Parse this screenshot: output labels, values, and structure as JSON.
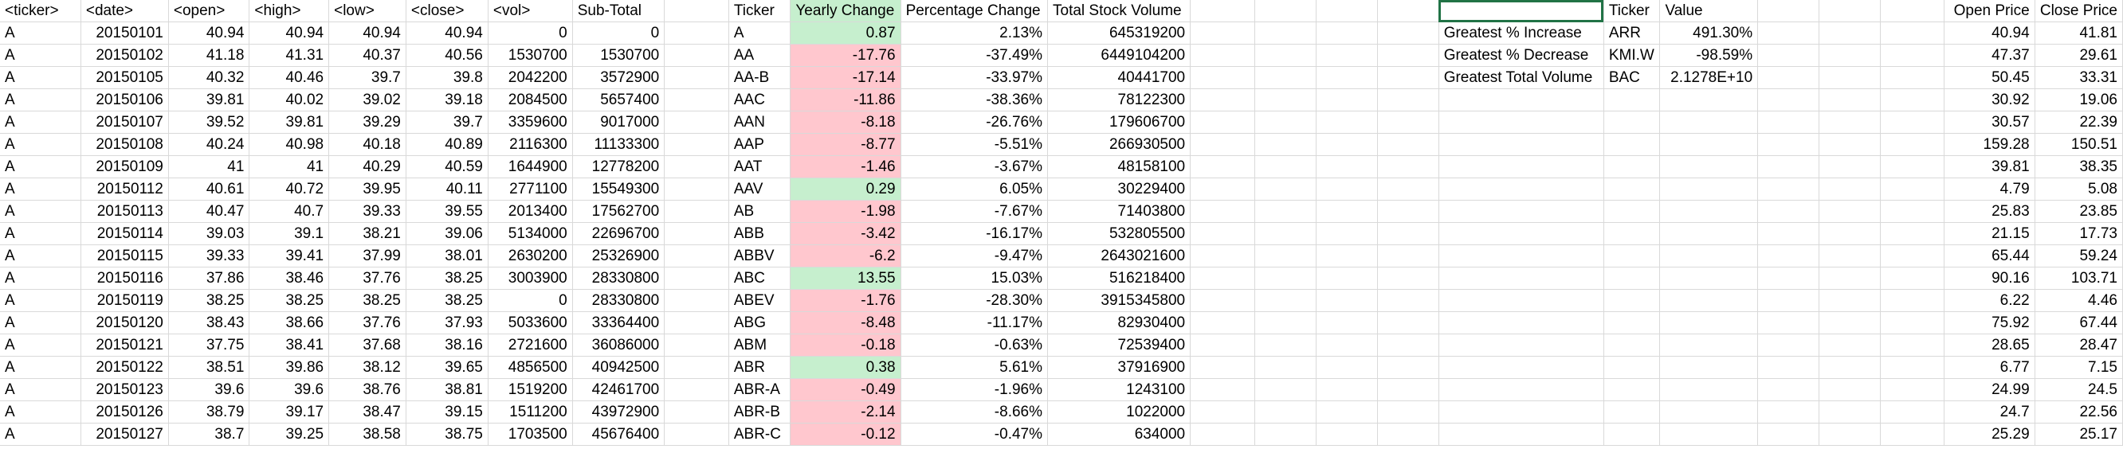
{
  "headers": [
    "<ticker>",
    "<date>",
    "<open>",
    "<high>",
    "<low>",
    "<close>",
    "<vol>",
    "Sub-Total",
    "",
    "Ticker",
    "Yearly Change",
    "Percentage Change",
    "Total Stock Volume",
    "",
    "",
    "",
    "",
    "",
    "Ticker",
    "Value",
    "",
    "",
    "",
    "Open Price",
    "Close Price"
  ],
  "raw_rows": [
    [
      "A",
      "20150101",
      "40.94",
      "40.94",
      "40.94",
      "40.94",
      "0",
      "0"
    ],
    [
      "A",
      "20150102",
      "41.18",
      "41.31",
      "40.37",
      "40.56",
      "1530700",
      "1530700"
    ],
    [
      "A",
      "20150105",
      "40.32",
      "40.46",
      "39.7",
      "39.8",
      "2042200",
      "3572900"
    ],
    [
      "A",
      "20150106",
      "39.81",
      "40.02",
      "39.02",
      "39.18",
      "2084500",
      "5657400"
    ],
    [
      "A",
      "20150107",
      "39.52",
      "39.81",
      "39.29",
      "39.7",
      "3359600",
      "9017000"
    ],
    [
      "A",
      "20150108",
      "40.24",
      "40.98",
      "40.18",
      "40.89",
      "2116300",
      "11133300"
    ],
    [
      "A",
      "20150109",
      "41",
      "41",
      "40.29",
      "40.59",
      "1644900",
      "12778200"
    ],
    [
      "A",
      "20150112",
      "40.61",
      "40.72",
      "39.95",
      "40.11",
      "2771100",
      "15549300"
    ],
    [
      "A",
      "20150113",
      "40.47",
      "40.7",
      "39.33",
      "39.55",
      "2013400",
      "17562700"
    ],
    [
      "A",
      "20150114",
      "39.03",
      "39.1",
      "38.21",
      "39.06",
      "5134000",
      "22696700"
    ],
    [
      "A",
      "20150115",
      "39.33",
      "39.41",
      "37.99",
      "38.01",
      "2630200",
      "25326900"
    ],
    [
      "A",
      "20150116",
      "37.86",
      "38.46",
      "37.76",
      "38.25",
      "3003900",
      "28330800"
    ],
    [
      "A",
      "20150119",
      "38.25",
      "38.25",
      "38.25",
      "38.25",
      "0",
      "28330800"
    ],
    [
      "A",
      "20150120",
      "38.43",
      "38.66",
      "37.76",
      "37.93",
      "5033600",
      "33364400"
    ],
    [
      "A",
      "20150121",
      "37.75",
      "38.41",
      "37.68",
      "38.16",
      "2721600",
      "36086000"
    ],
    [
      "A",
      "20150122",
      "38.51",
      "39.86",
      "38.12",
      "39.65",
      "4856500",
      "40942500"
    ],
    [
      "A",
      "20150123",
      "39.6",
      "39.6",
      "38.76",
      "38.81",
      "1519200",
      "42461700"
    ],
    [
      "A",
      "20150126",
      "38.79",
      "39.17",
      "38.47",
      "39.15",
      "1511200",
      "43972900"
    ],
    [
      "A",
      "20150127",
      "38.7",
      "39.25",
      "38.58",
      "38.75",
      "1703500",
      "45676400"
    ]
  ],
  "summary_rows": [
    [
      "A",
      "0.87",
      "2.13%",
      "645319200"
    ],
    [
      "AA",
      "-17.76",
      "-37.49%",
      "6449104200"
    ],
    [
      "AA-B",
      "-17.14",
      "-33.97%",
      "40441700"
    ],
    [
      "AAC",
      "-11.86",
      "-38.36%",
      "78122300"
    ],
    [
      "AAN",
      "-8.18",
      "-26.76%",
      "179606700"
    ],
    [
      "AAP",
      "-8.77",
      "-5.51%",
      "266930500"
    ],
    [
      "AAT",
      "-1.46",
      "-3.67%",
      "48158100"
    ],
    [
      "AAV",
      "0.29",
      "6.05%",
      "30229400"
    ],
    [
      "AB",
      "-1.98",
      "-7.67%",
      "71403800"
    ],
    [
      "ABB",
      "-3.42",
      "-16.17%",
      "532805500"
    ],
    [
      "ABBV",
      "-6.2",
      "-9.47%",
      "2643021600"
    ],
    [
      "ABC",
      "13.55",
      "15.03%",
      "516218400"
    ],
    [
      "ABEV",
      "-1.76",
      "-28.30%",
      "3915345800"
    ],
    [
      "ABG",
      "-8.48",
      "-11.17%",
      "82930400"
    ],
    [
      "ABM",
      "-0.18",
      "-0.63%",
      "72539400"
    ],
    [
      "ABR",
      "0.38",
      "5.61%",
      "37916900"
    ],
    [
      "ABR-A",
      "-0.49",
      "-1.96%",
      "1243100"
    ],
    [
      "ABR-B",
      "-2.14",
      "-8.66%",
      "1022000"
    ],
    [
      "ABR-C",
      "-0.12",
      "-0.47%",
      "634000"
    ]
  ],
  "greatest": [
    [
      "Greatest % Increase",
      "ARR",
      "491.30%"
    ],
    [
      "Greatest % Decrease",
      "KMI.W",
      "-98.59%"
    ],
    [
      "Greatest Total Volume",
      "BAC",
      "2.1278E+10"
    ]
  ],
  "price_rows": [
    [
      "40.94",
      "41.81"
    ],
    [
      "47.37",
      "29.61"
    ],
    [
      "50.45",
      "33.31"
    ],
    [
      "30.92",
      "19.06"
    ],
    [
      "30.57",
      "22.39"
    ],
    [
      "159.28",
      "150.51"
    ],
    [
      "39.81",
      "38.35"
    ],
    [
      "4.79",
      "5.08"
    ],
    [
      "25.83",
      "23.85"
    ],
    [
      "21.15",
      "17.73"
    ],
    [
      "65.44",
      "59.24"
    ],
    [
      "90.16",
      "103.71"
    ],
    [
      "6.22",
      "4.46"
    ],
    [
      "75.92",
      "67.44"
    ],
    [
      "28.65",
      "28.47"
    ],
    [
      "6.77",
      "7.15"
    ],
    [
      "24.99",
      "24.5"
    ],
    [
      "24.7",
      "22.56"
    ],
    [
      "25.29",
      "25.17"
    ]
  ],
  "colors": {
    "positive_fill": "#c6efce",
    "negative_fill": "#ffc7ce",
    "gridline": "#d9d9d9",
    "selection": "#217346"
  }
}
